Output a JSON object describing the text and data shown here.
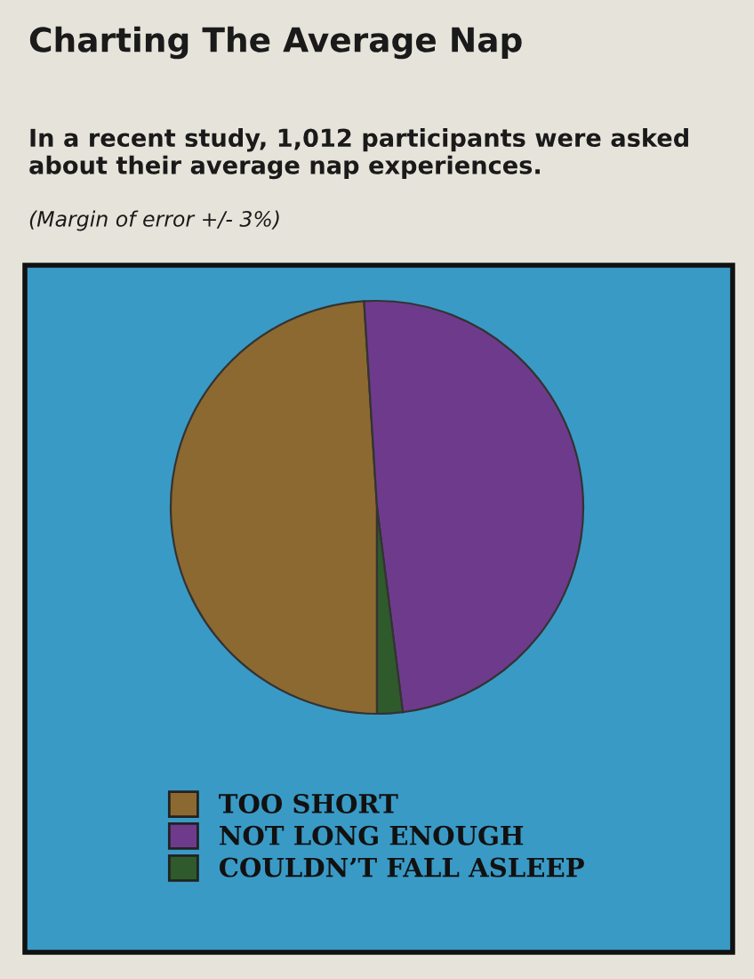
{
  "chart_data": {
    "type": "pie",
    "title": "Charting The Average Nap",
    "subtitle": "In a recent study, 1,012 participants were asked about their average nap experiences.",
    "annotations": [
      "(Margin of error +/- 3%)"
    ],
    "categories": [
      "TOO SHORT",
      "NOT LONG ENOUGH",
      "COULDN’T FALL ASLEEP"
    ],
    "values": [
      49,
      49,
      2
    ],
    "colors": [
      "#8c6930",
      "#6e3b8c",
      "#2e5a2c"
    ],
    "legend": "bottom"
  }
}
